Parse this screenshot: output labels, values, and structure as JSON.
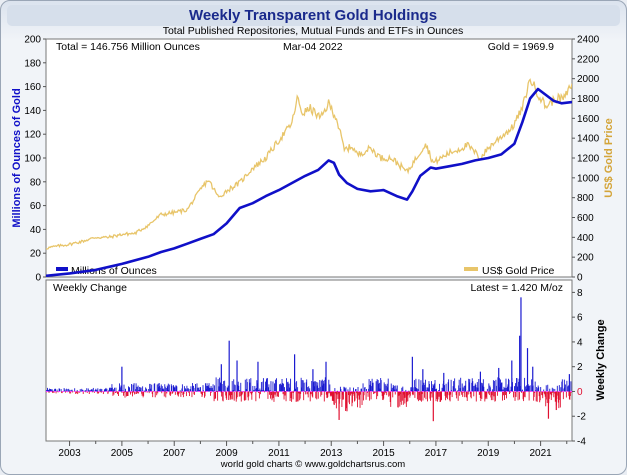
{
  "chart_data": {
    "type": "line",
    "title": "Weekly Transparent Gold Holdings",
    "subtitle": "Total Published Repositories, Mutual Funds and ETFs in Ounces",
    "info": {
      "total": "Total = 146.756 Million Ounces",
      "date": "Mar-04  2022",
      "gold": "Gold = 1969.9"
    },
    "ylabel_left": "Millions of Ounces of Gold",
    "ylabel_right": "US$ Gold Price",
    "ylabel_lower": "Weekly Change",
    "lower_title": "Weekly Change",
    "latest": "Latest = 1.420 M/oz",
    "footer": "world gold charts © www.goldchartsrus.com",
    "legend": {
      "holdings": "Millions of Ounces",
      "price": "US$ Gold Price"
    },
    "colors": {
      "holdings": "#1010c8",
      "price": "#e8c56a",
      "up": "#1a1ad0",
      "down": "#e01030",
      "title": "#1a2a8c",
      "right_axis": "#d4a53a"
    },
    "x_ticks": [
      "2003",
      "2005",
      "2007",
      "2009",
      "2011",
      "2013",
      "2015",
      "2017",
      "2019",
      "2021"
    ],
    "x_tick_years": [
      2003,
      2005,
      2007,
      2009,
      2011,
      2013,
      2015,
      2017,
      2019,
      2021
    ],
    "xlim": [
      2002.1,
      2022.2
    ],
    "ylim_left": [
      0,
      200
    ],
    "ylim_right": [
      0,
      2400
    ],
    "ylim_lower": [
      -4,
      9
    ],
    "y_ticks_left": [
      "0",
      "20",
      "40",
      "60",
      "80",
      "100",
      "120",
      "140",
      "160",
      "180",
      "200"
    ],
    "y_ticks_right": [
      "0",
      "200",
      "400",
      "600",
      "800",
      "1000",
      "1200",
      "1400",
      "1600",
      "1800",
      "2000",
      "2200",
      "2400"
    ],
    "y_ticks_lower": [
      "-4",
      "-2",
      "0",
      "2",
      "4",
      "6",
      "8"
    ],
    "series": [
      {
        "name": "Millions of Ounces",
        "axis": "left",
        "points": [
          [
            2002.1,
            1
          ],
          [
            2003.0,
            3
          ],
          [
            2004.0,
            6
          ],
          [
            2004.6,
            9
          ],
          [
            2005.0,
            11
          ],
          [
            2006.0,
            17
          ],
          [
            2006.5,
            21
          ],
          [
            2007.0,
            24
          ],
          [
            2007.5,
            28
          ],
          [
            2008.0,
            32
          ],
          [
            2008.5,
            36
          ],
          [
            2009.0,
            45
          ],
          [
            2009.5,
            58
          ],
          [
            2010.0,
            62
          ],
          [
            2010.5,
            68
          ],
          [
            2011.0,
            73
          ],
          [
            2011.5,
            79
          ],
          [
            2012.0,
            85
          ],
          [
            2012.5,
            90
          ],
          [
            2012.9,
            98
          ],
          [
            2013.1,
            96
          ],
          [
            2013.3,
            86
          ],
          [
            2013.6,
            79
          ],
          [
            2014.0,
            74
          ],
          [
            2014.5,
            72
          ],
          [
            2015.0,
            73
          ],
          [
            2015.5,
            68
          ],
          [
            2015.9,
            65
          ],
          [
            2016.1,
            72
          ],
          [
            2016.4,
            85
          ],
          [
            2016.8,
            92
          ],
          [
            2017.0,
            91
          ],
          [
            2017.5,
            93
          ],
          [
            2018.0,
            95
          ],
          [
            2018.5,
            98
          ],
          [
            2019.0,
            100
          ],
          [
            2019.5,
            103
          ],
          [
            2020.0,
            112
          ],
          [
            2020.3,
            130
          ],
          [
            2020.6,
            150
          ],
          [
            2020.9,
            158
          ],
          [
            2021.2,
            153
          ],
          [
            2021.5,
            148
          ],
          [
            2021.8,
            146
          ],
          [
            2022.2,
            147
          ]
        ]
      },
      {
        "name": "US$ Gold Price",
        "axis": "right",
        "points": [
          [
            2002.1,
            290
          ],
          [
            2002.5,
            310
          ],
          [
            2003.0,
            330
          ],
          [
            2003.5,
            360
          ],
          [
            2004.0,
            400
          ],
          [
            2004.5,
            400
          ],
          [
            2005.0,
            430
          ],
          [
            2005.5,
            440
          ],
          [
            2006.0,
            520
          ],
          [
            2006.5,
            630
          ],
          [
            2007.0,
            650
          ],
          [
            2007.5,
            680
          ],
          [
            2008.0,
            880
          ],
          [
            2008.3,
            980
          ],
          [
            2008.7,
            800
          ],
          [
            2009.0,
            870
          ],
          [
            2009.5,
            950
          ],
          [
            2010.0,
            1100
          ],
          [
            2010.5,
            1200
          ],
          [
            2011.0,
            1380
          ],
          [
            2011.5,
            1550
          ],
          [
            2011.7,
            1800
          ],
          [
            2011.9,
            1650
          ],
          [
            2012.2,
            1700
          ],
          [
            2012.6,
            1600
          ],
          [
            2012.9,
            1750
          ],
          [
            2013.2,
            1600
          ],
          [
            2013.5,
            1280
          ],
          [
            2013.8,
            1320
          ],
          [
            2014.0,
            1230
          ],
          [
            2014.5,
            1300
          ],
          [
            2014.9,
            1200
          ],
          [
            2015.3,
            1200
          ],
          [
            2015.9,
            1060
          ],
          [
            2016.4,
            1260
          ],
          [
            2016.6,
            1350
          ],
          [
            2016.9,
            1150
          ],
          [
            2017.5,
            1250
          ],
          [
            2017.9,
            1290
          ],
          [
            2018.2,
            1330
          ],
          [
            2018.7,
            1200
          ],
          [
            2019.0,
            1300
          ],
          [
            2019.5,
            1420
          ],
          [
            2019.9,
            1500
          ],
          [
            2020.3,
            1700
          ],
          [
            2020.6,
            2000
          ],
          [
            2020.9,
            1850
          ],
          [
            2021.2,
            1720
          ],
          [
            2021.6,
            1800
          ],
          [
            2021.9,
            1800
          ],
          [
            2022.2,
            1950
          ]
        ]
      }
    ],
    "weekly_change_note": "weekly changes in millions of ounces, roughly within -2.5 to +8",
    "weekly_change_spikes": [
      [
        2005.0,
        2.0
      ],
      [
        2008.8,
        2.2
      ],
      [
        2009.1,
        4.1
      ],
      [
        2009.4,
        2.5
      ],
      [
        2010.2,
        2.4
      ],
      [
        2011.6,
        3.0
      ],
      [
        2012.3,
        1.8
      ],
      [
        2012.8,
        2.4
      ],
      [
        2013.3,
        -2.3
      ],
      [
        2013.6,
        -1.6
      ],
      [
        2016.1,
        2.8
      ],
      [
        2016.5,
        1.8
      ],
      [
        2016.9,
        -2.4
      ],
      [
        2017.3,
        1.5
      ],
      [
        2018.7,
        1.6
      ],
      [
        2019.4,
        1.9
      ],
      [
        2019.9,
        2.5
      ],
      [
        2020.2,
        4.5
      ],
      [
        2020.25,
        7.6
      ],
      [
        2020.5,
        3.5
      ],
      [
        2020.7,
        2.0
      ],
      [
        2021.3,
        -2.2
      ],
      [
        2021.6,
        -1.5
      ],
      [
        2022.1,
        1.4
      ]
    ]
  }
}
